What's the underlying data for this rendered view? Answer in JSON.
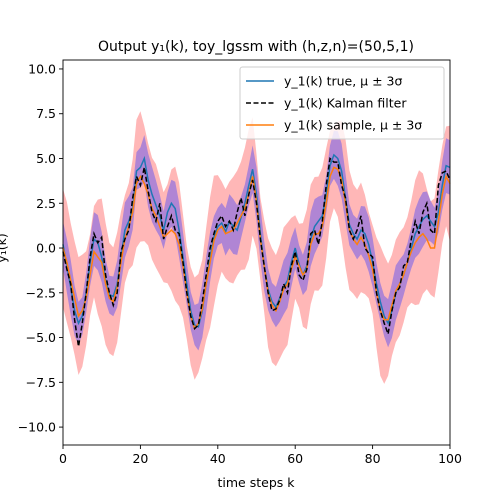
{
  "chart_data": {
    "type": "line",
    "title": "Output y₁(k), toy_lgssm with (h,z,n)=(50,5,1)",
    "xlabel": "time steps k",
    "ylabel": "y₁(k)",
    "xlim": [
      0,
      100
    ],
    "ylim": [
      -11,
      10.5
    ],
    "xticks": [
      "0",
      "20",
      "40",
      "60",
      "80",
      "100"
    ],
    "yticks": [
      "−10.0",
      "−7.5",
      "−5.0",
      "−2.5",
      "0.0",
      "2.5",
      "5.0",
      "7.5",
      "10.0"
    ],
    "ytick_values": [
      -10,
      -7.5,
      -5,
      -2.5,
      0,
      2.5,
      5,
      7.5,
      10
    ],
    "grid": false,
    "legend_position": "top-right",
    "x": [
      0,
      1,
      2,
      3,
      4,
      5,
      6,
      7,
      8,
      9,
      10,
      11,
      12,
      13,
      14,
      15,
      16,
      17,
      18,
      19,
      20,
      21,
      22,
      23,
      24,
      25,
      26,
      27,
      28,
      29,
      30,
      31,
      32,
      33,
      34,
      35,
      36,
      37,
      38,
      39,
      40,
      41,
      42,
      43,
      44,
      45,
      46,
      47,
      48,
      49,
      50,
      51,
      52,
      53,
      54,
      55,
      56,
      57,
      58,
      59,
      60,
      61,
      62,
      63,
      64,
      65,
      66,
      67,
      68,
      69,
      70,
      71,
      72,
      73,
      74,
      75,
      76,
      77,
      78,
      79,
      80,
      81,
      82,
      83,
      84,
      85,
      86,
      87,
      88,
      89,
      90,
      91,
      92,
      93,
      94,
      95,
      96,
      97,
      98,
      99,
      100
    ],
    "series": [
      {
        "name": "y_1(k) true, μ ± 3σ",
        "color": "#1f77b4",
        "band_color": "#3a3aff",
        "values": [
          0.2,
          -1.0,
          -2.2,
          -3.5,
          -4.2,
          -3.8,
          -2.5,
          -0.8,
          0.5,
          0.3,
          -0.5,
          -1.8,
          -2.6,
          -2.7,
          -2.0,
          -0.5,
          1.0,
          1.5,
          2.2,
          4.3,
          4.5,
          5.0,
          3.8,
          3.0,
          2.4,
          1.8,
          1.0,
          2.0,
          2.5,
          2.2,
          1.0,
          -0.5,
          -2.0,
          -3.5,
          -4.3,
          -4.4,
          -3.5,
          -2.0,
          -0.5,
          0.6,
          1.2,
          1.4,
          0.9,
          1.5,
          1.2,
          1.0,
          1.7,
          2.5,
          3.5,
          4.4,
          3.0,
          0.8,
          -1.0,
          -2.3,
          -3.0,
          -3.3,
          -2.8,
          -2.2,
          -1.8,
          -0.8,
          0.0,
          -0.9,
          -1.5,
          -1.0,
          0.5,
          1.2,
          1.5,
          1.8,
          3.0,
          4.6,
          5.2,
          5.0,
          4.3,
          2.8,
          1.3,
          0.8,
          0.5,
          1.0,
          0.8,
          0.2,
          -0.8,
          -2.0,
          -3.0,
          -3.8,
          -4.2,
          -3.5,
          -2.5,
          -2.0,
          -1.5,
          -0.8,
          0.0,
          0.8,
          1.2,
          1.6,
          1.8,
          1.5,
          1.2,
          2.0,
          3.5,
          4.6,
          4.5
        ]
      },
      {
        "name": "y_1(k) Kalman filter",
        "color": "#000000",
        "values": [
          -0.2,
          -1.2,
          -2.0,
          -4.0,
          -5.5,
          -4.2,
          -2.5,
          -0.5,
          0.8,
          0.3,
          0.6,
          -1.5,
          -2.5,
          -3.2,
          -2.5,
          -0.2,
          0.5,
          1.0,
          2.8,
          4.0,
          3.5,
          4.5,
          3.2,
          2.0,
          1.5,
          2.5,
          0.5,
          1.2,
          1.8,
          1.0,
          0.8,
          -0.8,
          -2.5,
          -3.8,
          -4.5,
          -4.3,
          -3.0,
          -1.5,
          0.0,
          0.8,
          1.5,
          1.8,
          1.2,
          1.5,
          1.0,
          2.0,
          2.8,
          1.8,
          3.0,
          3.8,
          2.5,
          0.5,
          -1.0,
          -2.5,
          -3.5,
          -3.4,
          -2.9,
          -2.0,
          -2.5,
          -1.0,
          -0.2,
          -1.5,
          -1.8,
          -1.2,
          0.8,
          1.0,
          0.2,
          1.5,
          3.5,
          5.0,
          4.8,
          4.8,
          3.5,
          2.8,
          1.0,
          0.5,
          1.0,
          1.8,
          0.0,
          -0.3,
          -0.5,
          -2.5,
          -3.5,
          -4.2,
          -4.8,
          -3.5,
          -2.5,
          -2.2,
          -1.0,
          -0.8,
          0.5,
          1.5,
          0.8,
          2.0,
          2.5,
          1.0,
          0.8,
          3.5,
          4.2,
          4.3,
          3.8
        ]
      },
      {
        "name": "y_1(k) sample, μ ± 3σ",
        "color": "#ff7f0e",
        "band_color": "#ff6f6f",
        "values": [
          0.0,
          -0.8,
          -1.8,
          -2.8,
          -3.8,
          -3.5,
          -2.8,
          -1.5,
          -0.2,
          -0.5,
          -0.8,
          -2.0,
          -2.8,
          -3.0,
          -2.2,
          -0.8,
          0.5,
          1.2,
          2.0,
          3.6,
          4.0,
          3.6,
          3.0,
          2.2,
          1.8,
          1.2,
          0.6,
          0.8,
          1.0,
          0.8,
          0.2,
          -1.0,
          -2.5,
          -3.8,
          -4.5,
          -4.2,
          -3.4,
          -2.0,
          -0.8,
          0.4,
          1.0,
          1.2,
          0.8,
          0.9,
          1.0,
          1.4,
          1.8,
          2.2,
          3.0,
          4.0,
          2.6,
          0.5,
          -1.0,
          -2.5,
          -3.2,
          -3.5,
          -3.0,
          -2.3,
          -2.0,
          -1.2,
          -0.5,
          -1.0,
          -1.5,
          -1.2,
          0.2,
          0.8,
          0.8,
          1.2,
          2.5,
          4.0,
          4.5,
          4.4,
          3.8,
          2.5,
          1.0,
          0.5,
          0.2,
          0.6,
          0.2,
          -0.4,
          -1.2,
          -2.5,
          -3.5,
          -4.0,
          -4.0,
          -3.2,
          -2.4,
          -2.0,
          -1.5,
          -0.8,
          -0.2,
          0.3,
          0.6,
          0.8,
          0.5,
          0.0,
          0.0,
          1.5,
          3.0,
          4.0,
          3.6
        ]
      }
    ]
  }
}
